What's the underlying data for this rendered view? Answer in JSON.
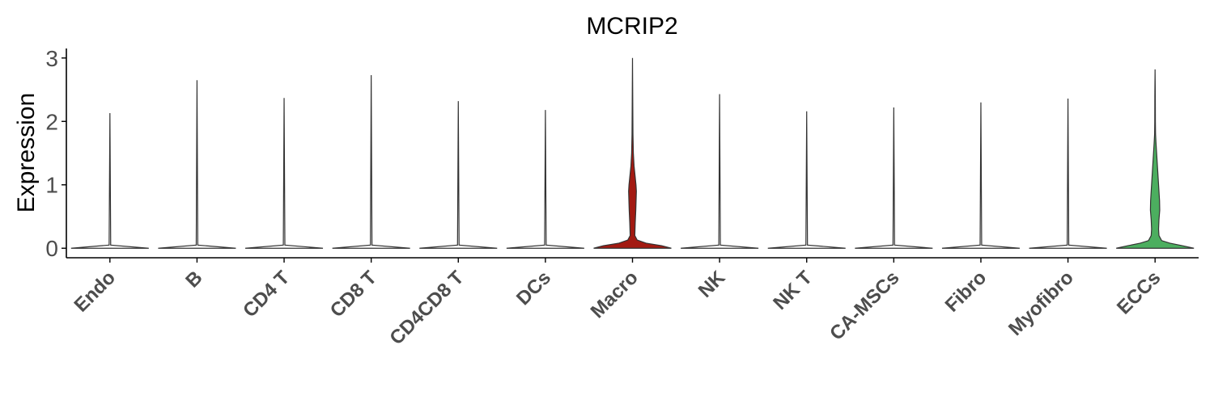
{
  "chart_data": {
    "type": "violin",
    "title": "MCRIP2",
    "ylabel": "Expression",
    "xlabel": "",
    "ylim": [
      -0.15,
      3.15
    ],
    "yticks": [
      0,
      1,
      2,
      3
    ],
    "grid": false,
    "legend": "none",
    "categories": [
      "Endo",
      "B",
      "CD4 T",
      "CD8 T",
      "CD4CD8 T",
      "DCs",
      "Macro",
      "NK",
      "NK T",
      "CA-MSCs",
      "Fibro",
      "Myofibro",
      "ECCs"
    ],
    "series": [
      {
        "category": "Endo",
        "max": 2.13,
        "color": "#ffffff",
        "density": [
          [
            0,
            1
          ],
          [
            0.05,
            0.02
          ],
          [
            2.13,
            0
          ]
        ]
      },
      {
        "category": "B",
        "max": 2.65,
        "color": "#ffffff",
        "density": [
          [
            0,
            1
          ],
          [
            0.05,
            0.02
          ],
          [
            2.65,
            0
          ]
        ]
      },
      {
        "category": "CD4 T",
        "max": 2.37,
        "color": "#ffffff",
        "density": [
          [
            0,
            1
          ],
          [
            0.05,
            0.02
          ],
          [
            2.37,
            0
          ]
        ]
      },
      {
        "category": "CD8 T",
        "max": 2.73,
        "color": "#ffffff",
        "density": [
          [
            0,
            1
          ],
          [
            0.05,
            0.02
          ],
          [
            2.73,
            0
          ]
        ]
      },
      {
        "category": "CD4CD8 T",
        "max": 2.32,
        "color": "#ffffff",
        "density": [
          [
            0,
            1
          ],
          [
            0.05,
            0.02
          ],
          [
            2.32,
            0
          ]
        ]
      },
      {
        "category": "DCs",
        "max": 2.18,
        "color": "#ffffff",
        "density": [
          [
            0,
            1
          ],
          [
            0.05,
            0.02
          ],
          [
            2.18,
            0
          ]
        ]
      },
      {
        "category": "Macro",
        "max": 3.0,
        "color": "#a31a12",
        "density": [
          [
            0,
            1
          ],
          [
            0.04,
            0.75
          ],
          [
            0.08,
            0.35
          ],
          [
            0.13,
            0.12
          ],
          [
            0.2,
            0.06
          ],
          [
            0.4,
            0.07
          ],
          [
            0.6,
            0.085
          ],
          [
            0.8,
            0.095
          ],
          [
            0.9,
            0.1
          ],
          [
            1.0,
            0.09
          ],
          [
            1.15,
            0.065
          ],
          [
            1.3,
            0.04
          ],
          [
            1.5,
            0.022
          ],
          [
            1.8,
            0.012
          ],
          [
            2.2,
            0.008
          ],
          [
            3.0,
            0
          ]
        ]
      },
      {
        "category": "NK",
        "max": 2.43,
        "color": "#ffffff",
        "density": [
          [
            0,
            1
          ],
          [
            0.05,
            0.02
          ],
          [
            2.43,
            0
          ]
        ]
      },
      {
        "category": "NK T",
        "max": 2.16,
        "color": "#ffffff",
        "density": [
          [
            0,
            1
          ],
          [
            0.05,
            0.02
          ],
          [
            2.16,
            0
          ]
        ]
      },
      {
        "category": "CA-MSCs",
        "max": 2.22,
        "color": "#ffffff",
        "density": [
          [
            0,
            1
          ],
          [
            0.05,
            0.02
          ],
          [
            2.22,
            0
          ]
        ]
      },
      {
        "category": "Fibro",
        "max": 2.3,
        "color": "#ffffff",
        "density": [
          [
            0,
            1
          ],
          [
            0.05,
            0.02
          ],
          [
            2.3,
            0
          ]
        ]
      },
      {
        "category": "Myofibro",
        "max": 2.36,
        "color": "#ffffff",
        "density": [
          [
            0,
            1
          ],
          [
            0.05,
            0.02
          ],
          [
            2.36,
            0
          ]
        ]
      },
      {
        "category": "ECCs",
        "max": 2.82,
        "color": "#4cae5f",
        "density": [
          [
            0,
            1
          ],
          [
            0.04,
            0.7
          ],
          [
            0.08,
            0.38
          ],
          [
            0.12,
            0.17
          ],
          [
            0.2,
            0.1
          ],
          [
            0.3,
            0.09
          ],
          [
            0.45,
            0.1
          ],
          [
            0.6,
            0.12
          ],
          [
            0.75,
            0.115
          ],
          [
            0.9,
            0.1
          ],
          [
            1.05,
            0.085
          ],
          [
            1.2,
            0.07
          ],
          [
            1.35,
            0.055
          ],
          [
            1.5,
            0.04
          ],
          [
            1.65,
            0.025
          ],
          [
            1.8,
            0.012
          ],
          [
            2.0,
            0.008
          ],
          [
            2.4,
            0.006
          ],
          [
            2.82,
            0
          ]
        ]
      }
    ]
  }
}
